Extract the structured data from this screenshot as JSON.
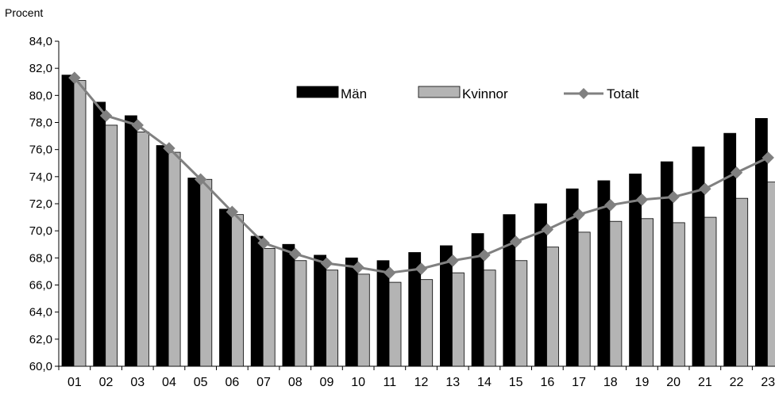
{
  "chart_data": {
    "type": "bar",
    "ylabel": "Procent",
    "ylim": [
      60,
      84
    ],
    "ytick_step": 2,
    "categories": [
      "01",
      "02",
      "03",
      "04",
      "05",
      "06",
      "07",
      "08",
      "09",
      "10",
      "11",
      "12",
      "13",
      "14",
      "15",
      "16",
      "17",
      "18",
      "19",
      "20",
      "21",
      "22",
      "23"
    ],
    "series": [
      {
        "name": "Män",
        "kind": "bar",
        "color": "#000000",
        "values": [
          81.5,
          79.5,
          78.5,
          76.3,
          73.9,
          71.6,
          69.6,
          69.0,
          68.2,
          68.0,
          67.8,
          68.4,
          68.9,
          69.8,
          71.2,
          72.0,
          73.1,
          73.7,
          74.2,
          75.1,
          76.2,
          77.2,
          78.3
        ]
      },
      {
        "name": "Kvinnor",
        "kind": "bar",
        "color": "#b4b4b4",
        "values": [
          81.1,
          77.8,
          77.3,
          75.8,
          73.8,
          71.2,
          68.7,
          67.8,
          67.1,
          66.8,
          66.2,
          66.4,
          66.9,
          67.1,
          67.8,
          68.8,
          69.9,
          70.7,
          70.9,
          70.6,
          71.0,
          72.4,
          73.6
        ]
      },
      {
        "name": "Totalt",
        "kind": "line",
        "color": "#808080",
        "values": [
          81.3,
          78.5,
          77.8,
          76.1,
          73.8,
          71.4,
          69.1,
          68.3,
          67.6,
          67.3,
          66.9,
          67.2,
          67.8,
          68.2,
          69.2,
          70.1,
          71.2,
          71.9,
          72.3,
          72.5,
          73.1,
          74.3,
          75.4
        ]
      }
    ],
    "yticks": [
      "60,0",
      "62,0",
      "64,0",
      "66,0",
      "68,0",
      "70,0",
      "72,0",
      "74,0",
      "76,0",
      "78,0",
      "80,0",
      "82,0",
      "84,0"
    ],
    "legend_position": "top-center",
    "grid": false
  }
}
